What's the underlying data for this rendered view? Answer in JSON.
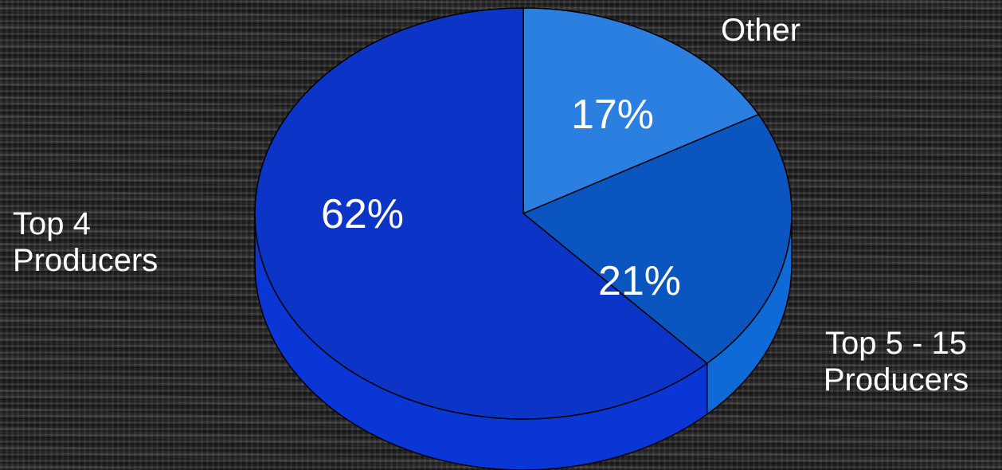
{
  "chart_data": {
    "type": "pie",
    "categories": [
      "Other",
      "Top 5 - 15 Producers",
      "Top 4 Producers"
    ],
    "values": [
      17,
      21,
      62
    ],
    "value_labels": [
      "17%",
      "21%",
      "62%"
    ],
    "colors": [
      "#2a7fe0",
      "#0a55bf",
      "#0c35c7"
    ],
    "side_colors": [
      "#1f73d8",
      "#0d6ad6",
      "#0b36d6"
    ],
    "style": "3d-tilted",
    "legend": "none",
    "title": ""
  }
}
